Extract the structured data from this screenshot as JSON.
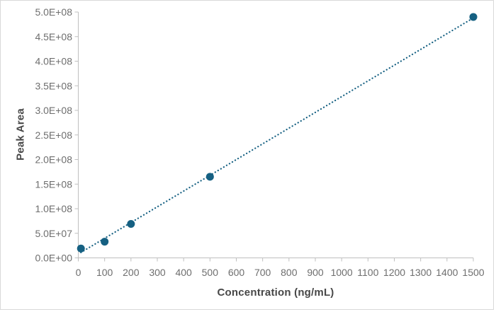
{
  "chart_data": {
    "type": "scatter",
    "title": "",
    "xlabel": "Concentration (ng/mL)",
    "ylabel": "Peak Area",
    "xlim": [
      0,
      1500
    ],
    "ylim": [
      0,
      500000000
    ],
    "grid": false,
    "legend": "none",
    "x_ticks": [
      {
        "value": 0,
        "label": "0"
      },
      {
        "value": 100,
        "label": "100"
      },
      {
        "value": 200,
        "label": "200"
      },
      {
        "value": 300,
        "label": "300"
      },
      {
        "value": 400,
        "label": "400"
      },
      {
        "value": 500,
        "label": "500"
      },
      {
        "value": 600,
        "label": "600"
      },
      {
        "value": 700,
        "label": "700"
      },
      {
        "value": 800,
        "label": "800"
      },
      {
        "value": 900,
        "label": "900"
      },
      {
        "value": 1000,
        "label": "1000"
      },
      {
        "value": 1100,
        "label": "1100"
      },
      {
        "value": 1200,
        "label": "1200"
      },
      {
        "value": 1300,
        "label": "1300"
      },
      {
        "value": 1400,
        "label": "1400"
      },
      {
        "value": 1500,
        "label": "1500"
      }
    ],
    "y_ticks": [
      {
        "value": 0,
        "label": "0.0E+00"
      },
      {
        "value": 50000000,
        "label": "5.0E+07"
      },
      {
        "value": 100000000,
        "label": "1.0E+08"
      },
      {
        "value": 150000000,
        "label": "1.5E+08"
      },
      {
        "value": 200000000,
        "label": "2.0E+08"
      },
      {
        "value": 250000000,
        "label": "2.5E+08"
      },
      {
        "value": 300000000,
        "label": "3.0E+08"
      },
      {
        "value": 350000000,
        "label": "3.5E+08"
      },
      {
        "value": 400000000,
        "label": "4.0E+08"
      },
      {
        "value": 450000000,
        "label": "4.5E+08"
      },
      {
        "value": 500000000,
        "label": "5.0E+08"
      }
    ],
    "points": [
      [
        10,
        19000000
      ],
      [
        100,
        33000000
      ],
      [
        200,
        69000000
      ],
      [
        500,
        165000000
      ],
      [
        1500,
        490000000
      ]
    ],
    "trendline": {
      "style": "dotted",
      "points": [
        [
          10,
          11000000
        ],
        [
          1500,
          488000000
        ]
      ]
    }
  },
  "colors": {
    "accent": "#156082",
    "axis_line": "#bfbfbf",
    "tick_label": "#6e6e6e",
    "axis_title": "#474747",
    "chart_border": "#d9d9d9",
    "background": "#ffffff"
  }
}
